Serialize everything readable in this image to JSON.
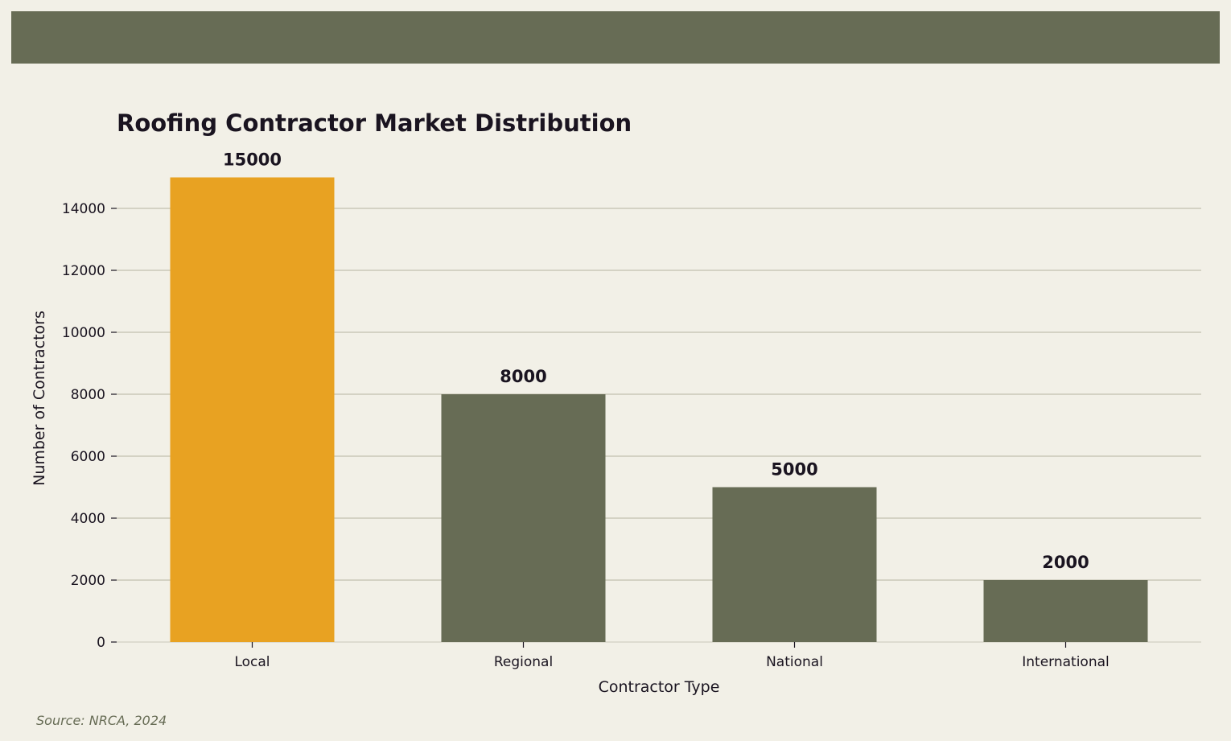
{
  "colors": {
    "background": "#f2f0e7",
    "band": "#676c55",
    "highlight_bar": "#e8a222",
    "default_bar": "#676c55",
    "grid": "#c9c8b8",
    "text": "#1a1420",
    "source_text": "#676c55"
  },
  "chart_data": {
    "type": "bar",
    "title": "Roofing Contractor Market Distribution",
    "xlabel": "Contractor Type",
    "ylabel": "Number of Contractors",
    "categories": [
      "Local",
      "Regional",
      "National",
      "International"
    ],
    "values": [
      15000,
      8000,
      5000,
      2000
    ],
    "data_labels": [
      "15000",
      "8000",
      "5000",
      "2000"
    ],
    "highlighted_category": "Local",
    "ylim": [
      0,
      15750
    ],
    "yticks": [
      0,
      2000,
      4000,
      6000,
      8000,
      10000,
      12000,
      14000
    ],
    "ytick_labels": [
      "0",
      "2000",
      "4000",
      "6000",
      "8000",
      "10000",
      "12000",
      "14000"
    ],
    "grid": "horizontal",
    "legend": "none"
  },
  "source": "Source: NRCA, 2024"
}
